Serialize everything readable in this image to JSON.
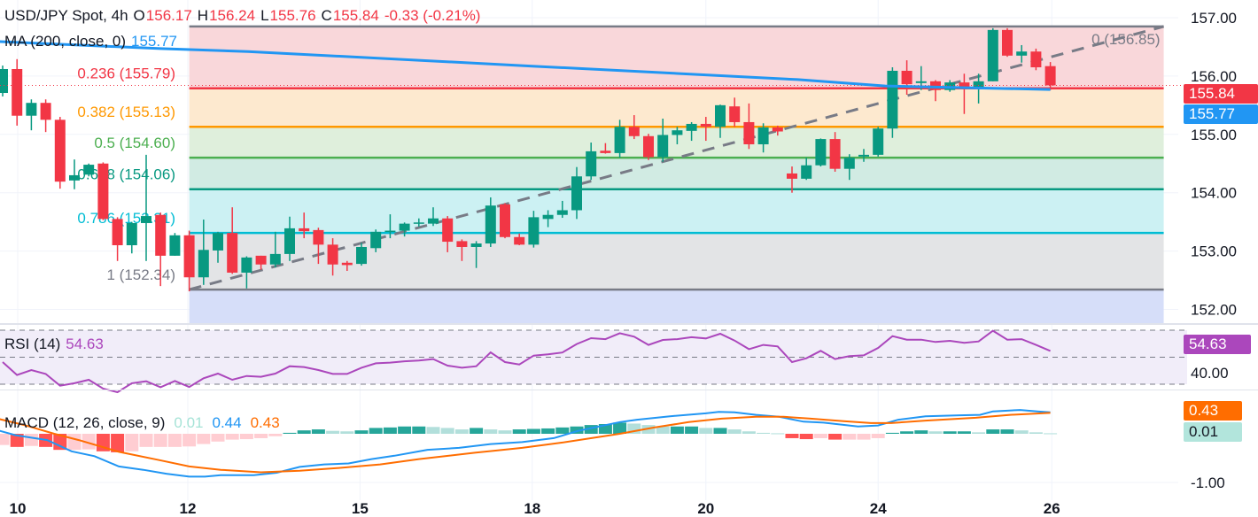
{
  "header": {
    "symbol": "USD/JPY Spot, 4h",
    "o_label": "O",
    "o": "156.17",
    "h_label": "H",
    "h": "156.24",
    "l_label": "L",
    "l": "155.76",
    "c_label": "C",
    "c": "155.84",
    "change": "-0.33 (-0.21%)"
  },
  "ma_legend": {
    "label": "MA (200, close, 0)",
    "value": "155.77"
  },
  "rsi_legend": {
    "label": "RSI (14)",
    "value": "54.63"
  },
  "macd_legend": {
    "label": "MACD (12, 26, close, 9)",
    "hist": "0.01",
    "macd": "0.44",
    "signal": "0.43"
  },
  "tags": {
    "price": "155.84",
    "ma": "155.77",
    "rsi": "54.63",
    "signal": "0.43",
    "hist": "0.01"
  },
  "colors": {
    "up": "#089981",
    "down": "#f23645",
    "ma": "#2196f3",
    "rsi": "#ab47bc",
    "macd": "#2196f3",
    "signal": "#ff6d00"
  },
  "chart_data": [
    {
      "type": "candlestick",
      "title": "USD/JPY Spot, 4h",
      "ylim": [
        151.65,
        157.3
      ],
      "y_ticks": [
        {
          "v": 157,
          "label": "157.00"
        },
        {
          "v": 156,
          "label": "156.00"
        },
        {
          "v": 155,
          "label": "155.00"
        },
        {
          "v": 154,
          "label": "154.00"
        },
        {
          "v": 153,
          "label": "153.00"
        },
        {
          "v": 152,
          "label": "152.00"
        }
      ],
      "x_ticks": [
        {
          "i": 1.05,
          "label": "10"
        },
        {
          "i": 12.9,
          "label": "12"
        },
        {
          "i": 24.9,
          "label": "15"
        },
        {
          "i": 36.9,
          "label": "18"
        },
        {
          "i": 49,
          "label": "20"
        },
        {
          "i": 61,
          "label": "24"
        },
        {
          "i": 73.1,
          "label": "26"
        }
      ],
      "ohlc": [
        [
          155.71,
          156.18,
          155.65,
          156.12
        ],
        [
          156.12,
          156.29,
          155.15,
          155.32
        ],
        [
          155.32,
          155.6,
          155.07,
          155.54
        ],
        [
          155.54,
          155.6,
          155.04,
          155.25
        ],
        [
          155.25,
          155.3,
          154.07,
          154.19
        ],
        [
          154.21,
          154.57,
          154.06,
          154.3
        ],
        [
          154.31,
          154.5,
          154.28,
          154.48
        ],
        [
          154.5,
          154.52,
          153.53,
          153.55
        ],
        [
          153.55,
          153.58,
          152.83,
          153.1
        ],
        [
          153.1,
          153.5,
          152.96,
          153.48
        ],
        [
          153.48,
          154.65,
          152.83,
          153.6
        ],
        [
          153.62,
          153.66,
          152.4,
          152.92
        ],
        [
          152.92,
          153.31,
          152.92,
          153.27
        ],
        [
          153.27,
          153.35,
          152.31,
          152.55
        ],
        [
          152.55,
          153.54,
          152.42,
          153.02
        ],
        [
          153.01,
          153.33,
          152.8,
          153.31
        ],
        [
          153.31,
          153.75,
          152.61,
          152.63
        ],
        [
          152.63,
          152.91,
          152.36,
          152.89
        ],
        [
          152.92,
          152.92,
          152.68,
          152.77
        ],
        [
          152.77,
          153.33,
          152.72,
          152.95
        ],
        [
          152.95,
          153.59,
          152.83,
          153.39
        ],
        [
          153.39,
          153.66,
          153.22,
          153.34
        ],
        [
          153.36,
          153.4,
          152.78,
          153.11
        ],
        [
          153.11,
          153.22,
          152.58,
          152.77
        ],
        [
          152.8,
          152.83,
          152.66,
          152.76
        ],
        [
          152.78,
          153.14,
          152.75,
          153.07
        ],
        [
          153.05,
          153.37,
          152.98,
          153.33
        ],
        [
          153.33,
          153.63,
          153.22,
          153.35
        ],
        [
          153.35,
          153.49,
          153.25,
          153.47
        ],
        [
          153.48,
          153.56,
          153.42,
          153.49
        ],
        [
          153.47,
          153.75,
          153.43,
          153.56
        ],
        [
          153.56,
          153.6,
          152.98,
          153.16
        ],
        [
          153.17,
          153.2,
          152.83,
          153.07
        ],
        [
          153.07,
          153.17,
          152.71,
          153.13
        ],
        [
          153.13,
          153.92,
          153.07,
          153.78
        ],
        [
          153.8,
          153.82,
          153.22,
          153.24
        ],
        [
          153.24,
          153.3,
          153.1,
          153.11
        ],
        [
          153.11,
          153.69,
          153.06,
          153.58
        ],
        [
          153.55,
          153.7,
          153.41,
          153.62
        ],
        [
          153.62,
          153.86,
          153.57,
          153.7
        ],
        [
          153.7,
          154.44,
          153.55,
          154.28
        ],
        [
          154.28,
          154.86,
          154.22,
          154.71
        ],
        [
          154.72,
          154.85,
          154.67,
          154.68
        ],
        [
          154.68,
          155.25,
          154.6,
          155.13
        ],
        [
          155.13,
          155.33,
          154.92,
          154.97
        ],
        [
          154.97,
          155.01,
          154.56,
          154.61
        ],
        [
          154.61,
          155.27,
          154.53,
          154.99
        ],
        [
          154.99,
          155.13,
          154.83,
          155.07
        ],
        [
          155.06,
          155.21,
          154.89,
          155.18
        ],
        [
          155.18,
          155.3,
          154.89,
          155.13
        ],
        [
          155.13,
          155.51,
          154.94,
          155.5
        ],
        [
          155.48,
          155.63,
          155.13,
          155.21
        ],
        [
          155.21,
          155.53,
          154.75,
          154.83
        ],
        [
          154.83,
          155.19,
          154.69,
          155.12
        ],
        [
          155.12,
          155.15,
          154.98,
          155.05
        ],
        [
          154.33,
          154.45,
          154.0,
          154.24
        ],
        [
          154.24,
          154.6,
          154.22,
          154.47
        ],
        [
          154.47,
          154.93,
          154.45,
          154.92
        ],
        [
          154.92,
          155.04,
          154.36,
          154.41
        ],
        [
          154.41,
          154.66,
          154.22,
          154.6
        ],
        [
          154.62,
          154.75,
          154.53,
          154.65
        ],
        [
          154.65,
          155.13,
          154.62,
          155.1
        ],
        [
          155.1,
          156.15,
          154.94,
          156.09
        ],
        [
          156.09,
          156.27,
          155.68,
          155.86
        ],
        [
          155.88,
          156.17,
          155.76,
          155.91
        ],
        [
          155.91,
          155.93,
          155.57,
          155.76
        ],
        [
          155.76,
          155.93,
          155.73,
          155.89
        ],
        [
          155.89,
          156.04,
          155.35,
          155.8
        ],
        [
          155.8,
          156.04,
          155.53,
          155.91
        ],
        [
          155.91,
          156.82,
          155.91,
          156.79
        ],
        [
          156.79,
          156.82,
          156.33,
          156.35
        ],
        [
          156.35,
          156.53,
          156.23,
          156.42
        ],
        [
          156.42,
          156.47,
          156.1,
          156.15
        ],
        [
          156.17,
          156.24,
          155.76,
          155.84
        ]
      ],
      "ma200": [
        [
          -0.2,
          156.59
        ],
        [
          11,
          156.47
        ],
        [
          17.1,
          156.42
        ],
        [
          36.9,
          156.17
        ],
        [
          55.4,
          155.94
        ],
        [
          61.5,
          155.83
        ],
        [
          73,
          155.77
        ]
      ],
      "last_price": 155.84,
      "fibonacci": {
        "from_index": 13,
        "to_index": 80.9,
        "low": 152.34,
        "high": 156.85,
        "levels": [
          {
            "ratio": 0,
            "price": 156.85,
            "label": "0 (156.85)",
            "color": "#787b86",
            "fill": "#f9d7da"
          },
          {
            "ratio": 0.236,
            "price": 155.79,
            "label": "0.236 (155.79)",
            "color": "#f23645",
            "fill": "#fde9cf"
          },
          {
            "ratio": 0.382,
            "price": 155.13,
            "label": "0.382 (155.13)",
            "color": "#ff9800",
            "fill": "#dfefdc"
          },
          {
            "ratio": 0.5,
            "price": 154.6,
            "label": "0.5 (154.60)",
            "color": "#4caf50",
            "fill": "#d1ebe3"
          },
          {
            "ratio": 0.618,
            "price": 154.06,
            "label": "0.618 (154.06)",
            "color": "#089981",
            "fill": "#ccf1f3"
          },
          {
            "ratio": 0.786,
            "price": 153.31,
            "label": "0.786 (153.31)",
            "color": "#00bcd4",
            "fill": "#e3e4e6"
          },
          {
            "ratio": 1,
            "price": 152.34,
            "label": "1 (152.34)",
            "color": "#787b86",
            "fill": "#d6def9"
          }
        ]
      }
    },
    {
      "type": "line",
      "title": "RSI (14)",
      "ylim": [
        30,
        70
      ],
      "bands": [
        70,
        50,
        30
      ],
      "y_ticks": [
        {
          "v": 40,
          "label": "40.00"
        }
      ],
      "values": [
        46.4,
        36.8,
        40.5,
        37.6,
        28.9,
        30.7,
        33.3,
        26.7,
        24.1,
        30.7,
        32.2,
        27.8,
        32.4,
        28.0,
        34.4,
        37.9,
        33.3,
        36.1,
        35.5,
        37.9,
        43.3,
        42.7,
        40.5,
        37.6,
        37.6,
        42.2,
        45.5,
        46.0,
        47.0,
        47.5,
        48.6,
        43.8,
        42.2,
        43.3,
        53.6,
        46.4,
        44.6,
        51.2,
        52.1,
        53.5,
        59.8,
        64.1,
        63.4,
        67.8,
        65.2,
        59.1,
        62.8,
        63.4,
        64.8,
        63.9,
        67.4,
        62.3,
        56.0,
        59.1,
        58.0,
        46.4,
        49.2,
        54.7,
        48.6,
        50.8,
        51.4,
        56.9,
        65.6,
        63.0,
        63.0,
        61.3,
        62.1,
        60.6,
        61.7,
        69.6,
        63.0,
        63.4,
        59.1,
        54.63
      ]
    },
    {
      "type": "bar+line",
      "title": "MACD (12, 26, close, 9)",
      "y_ticks": [
        {
          "v": -1,
          "label": "-1.00"
        }
      ],
      "histogram": [
        -0.23,
        -0.27,
        -0.25,
        -0.27,
        -0.33,
        -0.33,
        -0.32,
        -0.36,
        -0.38,
        -0.36,
        -0.27,
        -0.27,
        -0.27,
        -0.26,
        -0.21,
        -0.16,
        -0.12,
        -0.11,
        -0.09,
        -0.05,
        0.02,
        0.07,
        0.09,
        0.06,
        0.05,
        0.07,
        0.12,
        0.13,
        0.15,
        0.15,
        0.14,
        0.12,
        0.09,
        0.12,
        0.09,
        0.07,
        0.09,
        0.1,
        0.11,
        0.13,
        0.15,
        0.18,
        0.2,
        0.23,
        0.21,
        0.18,
        0.15,
        0.15,
        0.15,
        0.12,
        0.12,
        0.09,
        0.05,
        0.02,
        0.01,
        -0.09,
        -0.11,
        -0.09,
        -0.12,
        -0.12,
        -0.12,
        -0.09,
        0.02,
        0.05,
        0.07,
        0.05,
        0.05,
        0.05,
        0.03,
        0.09,
        0.09,
        0.07,
        0.03,
        0.01
      ],
      "macd": [
        [
          -0.2,
          0.06
        ],
        [
          0.9,
          -0.03
        ],
        [
          3.1,
          -0.13
        ],
        [
          4.8,
          -0.36
        ],
        [
          6.4,
          -0.46
        ],
        [
          8.1,
          -0.67
        ],
        [
          9.8,
          -0.74
        ],
        [
          11.4,
          -0.82
        ],
        [
          13,
          -0.88
        ],
        [
          14.1,
          -0.88
        ],
        [
          15.2,
          -0.85
        ],
        [
          17.5,
          -0.85
        ],
        [
          19.1,
          -0.8
        ],
        [
          20.7,
          -0.68
        ],
        [
          22.4,
          -0.63
        ],
        [
          24.1,
          -0.61
        ],
        [
          25.7,
          -0.52
        ],
        [
          27.3,
          -0.45
        ],
        [
          29.6,
          -0.33
        ],
        [
          31.8,
          -0.29
        ],
        [
          34,
          -0.21
        ],
        [
          36.2,
          -0.17
        ],
        [
          38.4,
          -0.09
        ],
        [
          40.1,
          0.06
        ],
        [
          43,
          0.24
        ],
        [
          44.2,
          0.29
        ],
        [
          46.5,
          0.36
        ],
        [
          49,
          0.42
        ],
        [
          49.9,
          0.45
        ],
        [
          51,
          0.44
        ],
        [
          52.5,
          0.39
        ],
        [
          54.1,
          0.35
        ],
        [
          55.8,
          0.25
        ],
        [
          57.2,
          0.23
        ],
        [
          59.6,
          0.15
        ],
        [
          61,
          0.17
        ],
        [
          62.4,
          0.29
        ],
        [
          64.3,
          0.36
        ],
        [
          66.7,
          0.38
        ],
        [
          68.1,
          0.39
        ],
        [
          69,
          0.46
        ],
        [
          70.9,
          0.49
        ],
        [
          72.1,
          0.46
        ],
        [
          73,
          0.44
        ]
      ],
      "signal": [
        [
          -0.2,
          0.3
        ],
        [
          1.5,
          0.18
        ],
        [
          3.6,
          0
        ],
        [
          5.3,
          -0.13
        ],
        [
          8.1,
          -0.37
        ],
        [
          10.9,
          -0.54
        ],
        [
          13,
          -0.67
        ],
        [
          15.2,
          -0.74
        ],
        [
          18,
          -0.79
        ],
        [
          20.7,
          -0.76
        ],
        [
          23.5,
          -0.7
        ],
        [
          26.3,
          -0.63
        ],
        [
          29,
          -0.52
        ],
        [
          32.9,
          -0.39
        ],
        [
          36.2,
          -0.29
        ],
        [
          39,
          -0.18
        ],
        [
          43,
          0
        ],
        [
          45.4,
          0.13
        ],
        [
          47.8,
          0.24
        ],
        [
          50.1,
          0.31
        ],
        [
          52.5,
          0.35
        ],
        [
          54.4,
          0.35
        ],
        [
          56.3,
          0.31
        ],
        [
          58.6,
          0.26
        ],
        [
          60.5,
          0.22
        ],
        [
          61.9,
          0.22
        ],
        [
          64.3,
          0.27
        ],
        [
          67.8,
          0.33
        ],
        [
          70.2,
          0.39
        ],
        [
          73,
          0.43
        ]
      ]
    }
  ]
}
